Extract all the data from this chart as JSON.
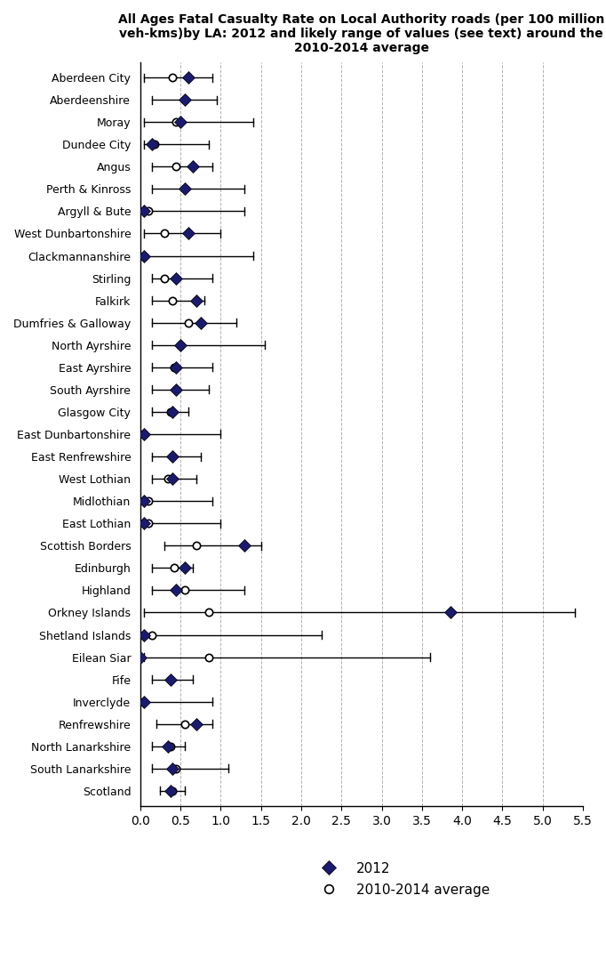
{
  "title": "All Ages Fatal Casualty Rate on Local Authority roads (per 100 million\nveh-kms)by LA: 2012 and likely range of values (see text) around the\n2010-2014 average",
  "categories": [
    "Aberdeen City",
    "Aberdeenshire",
    "Moray",
    "Dundee City",
    "Angus",
    "Perth & Kinross",
    "Argyll & Bute",
    "West Dunbartonshire",
    "Clackmannanshire",
    "Stirling",
    "Falkirk",
    "Dumfries & Galloway",
    "North Ayrshire",
    "East Ayrshire",
    "South Ayrshire",
    "Glasgow City",
    "East Dunbartonshire",
    "East Renfrewshire",
    "West Lothian",
    "Midlothian",
    "East Lothian",
    "Scottish Borders",
    "Edinburgh",
    "Highland",
    "Orkney Islands",
    "Shetland Islands",
    "Eilean Siar",
    "Fife",
    "Inverclyde",
    "Renfrewshire",
    "North Lanarkshire",
    "South Lanarkshire",
    "Scotland"
  ],
  "val_2012": [
    0.6,
    0.55,
    0.5,
    0.15,
    0.65,
    0.55,
    0.05,
    0.6,
    0.05,
    0.45,
    0.7,
    0.75,
    0.5,
    0.45,
    0.45,
    0.4,
    0.05,
    0.4,
    0.4,
    0.05,
    0.05,
    1.3,
    0.55,
    0.45,
    3.85,
    0.05,
    0.0,
    0.38,
    0.05,
    0.7,
    0.35,
    0.4,
    0.38
  ],
  "val_avg": [
    0.4,
    0.55,
    0.45,
    0.18,
    0.45,
    0.55,
    0.1,
    0.3,
    0.05,
    0.3,
    0.4,
    0.6,
    0.5,
    0.42,
    0.45,
    0.38,
    0.05,
    0.4,
    0.35,
    0.1,
    0.1,
    0.7,
    0.42,
    0.55,
    0.85,
    0.15,
    0.85,
    0.38,
    0.05,
    0.55,
    0.38,
    0.45,
    0.4
  ],
  "bar_left": [
    0.05,
    0.15,
    0.05,
    0.05,
    0.15,
    0.15,
    0.05,
    0.05,
    0.05,
    0.15,
    0.15,
    0.15,
    0.15,
    0.15,
    0.15,
    0.15,
    0.05,
    0.15,
    0.15,
    0.05,
    0.05,
    0.3,
    0.15,
    0.15,
    0.05,
    0.05,
    0.05,
    0.15,
    0.05,
    0.2,
    0.15,
    0.15,
    0.25
  ],
  "bar_right": [
    0.9,
    0.95,
    1.4,
    0.85,
    0.9,
    1.3,
    1.3,
    1.0,
    1.4,
    0.9,
    0.8,
    1.2,
    1.55,
    0.9,
    0.85,
    0.6,
    1.0,
    0.75,
    0.7,
    0.9,
    1.0,
    1.5,
    0.65,
    1.3,
    5.4,
    2.25,
    3.6,
    0.65,
    0.9,
    0.9,
    0.55,
    1.1,
    0.55
  ],
  "xlim": [
    0.0,
    5.5
  ],
  "xticks": [
    0.0,
    0.5,
    1.0,
    1.5,
    2.0,
    2.5,
    3.0,
    3.5,
    4.0,
    4.5,
    5.0,
    5.5
  ],
  "color_2012": "#1a1a6e",
  "legend_fontsize": 11,
  "title_fontsize": 10,
  "ylabel_fontsize": 9,
  "xlabel_fontsize": 10
}
